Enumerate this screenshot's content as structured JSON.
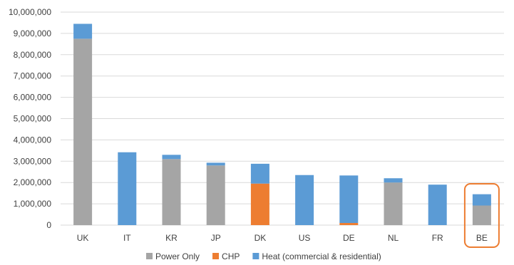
{
  "chart_data": {
    "type": "bar",
    "stacked": true,
    "categories": [
      "UK",
      "IT",
      "KR",
      "JP",
      "DK",
      "US",
      "DE",
      "NL",
      "FR",
      "BE"
    ],
    "series": [
      {
        "name": "Power Only",
        "color": "#a5a5a5",
        "values": [
          8750000,
          0,
          3100000,
          2800000,
          0,
          0,
          0,
          2000000,
          0,
          920000
        ]
      },
      {
        "name": "CHP",
        "color": "#ed7d31",
        "values": [
          0,
          0,
          0,
          0,
          1950000,
          0,
          100000,
          0,
          0,
          0
        ]
      },
      {
        "name": "Heat (commercial & residential)",
        "color": "#5b9bd5",
        "values": [
          700000,
          3420000,
          200000,
          130000,
          930000,
          2350000,
          2230000,
          200000,
          1900000,
          530000
        ]
      }
    ],
    "ylim": [
      0,
      10000000
    ],
    "yticks": [
      0,
      1000000,
      2000000,
      3000000,
      4000000,
      5000000,
      6000000,
      7000000,
      8000000,
      9000000,
      10000000
    ],
    "ytick_labels": [
      "0",
      "1,000,000",
      "2,000,000",
      "3,000,000",
      "4,000,000",
      "5,000,000",
      "6,000,000",
      "7,000,000",
      "8,000,000",
      "9,000,000",
      "10,000,000"
    ],
    "grid": true,
    "legend_position": "bottom",
    "highlight": {
      "category": "BE",
      "color": "#ed7d31"
    }
  }
}
